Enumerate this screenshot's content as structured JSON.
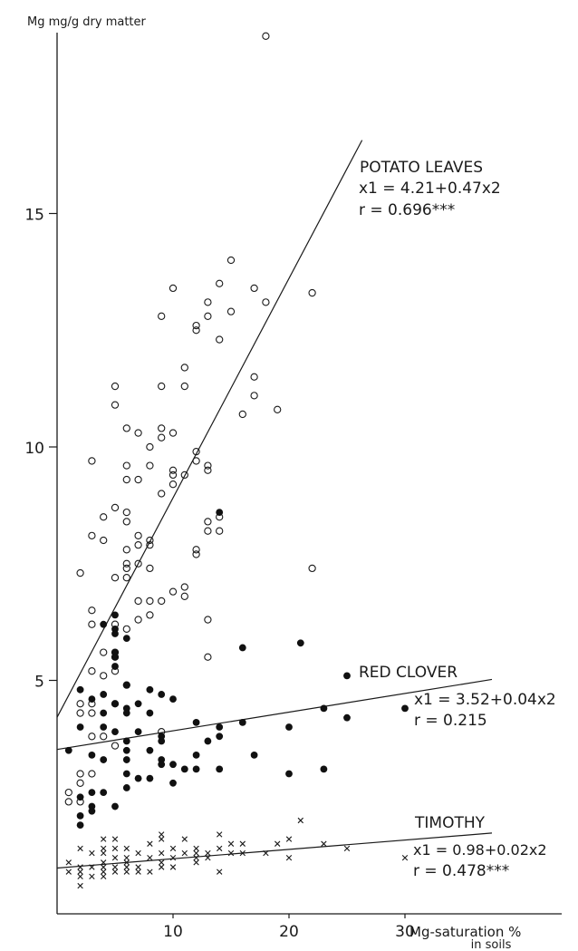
{
  "chart_data": {
    "type": "scatter",
    "title": "",
    "ylabel": "Mg mg/g dry matter",
    "xlabel_line1": "Mg-saturation %",
    "xlabel_line2": "in soils",
    "xlim": [
      0,
      44
    ],
    "ylim": [
      0,
      19
    ],
    "xticks": [
      10,
      20,
      30
    ],
    "xtick_labels": [
      "10",
      "20",
      "30"
    ],
    "yticks": [
      5,
      10,
      15
    ],
    "ytick_labels": [
      "5",
      "10",
      "15"
    ],
    "grid": false,
    "series": [
      {
        "name": "POTATO LEAVES",
        "equation": "x1 = 4.21+0.47x2",
        "r_label": "r = 0.696***",
        "marker": "open-circle",
        "fit": {
          "intercept": 4.21,
          "slope": 0.47,
          "x_end": 26.3
        },
        "points": [
          [
            18,
            18.8
          ],
          [
            15,
            14
          ],
          [
            14,
            13.5
          ],
          [
            10,
            13.4
          ],
          [
            17,
            13.4
          ],
          [
            22,
            13.3
          ],
          [
            13,
            13.1
          ],
          [
            18,
            13.1
          ],
          [
            15,
            12.9
          ],
          [
            9,
            12.8
          ],
          [
            13,
            12.8
          ],
          [
            12,
            12.6
          ],
          [
            12,
            12.5
          ],
          [
            14,
            12.3
          ],
          [
            11,
            11.7
          ],
          [
            17,
            11.5
          ],
          [
            5,
            11.3
          ],
          [
            9,
            11.3
          ],
          [
            11,
            11.3
          ],
          [
            17,
            11.1
          ],
          [
            5,
            10.9
          ],
          [
            19,
            10.8
          ],
          [
            16,
            10.7
          ],
          [
            6,
            10.4
          ],
          [
            9,
            10.4
          ],
          [
            7,
            10.3
          ],
          [
            10,
            10.3
          ],
          [
            9,
            10.2
          ],
          [
            8,
            10
          ],
          [
            12,
            9.9
          ],
          [
            12,
            9.7
          ],
          [
            3,
            9.7
          ],
          [
            6,
            9.6
          ],
          [
            8,
            9.6
          ],
          [
            13,
            9.6
          ],
          [
            10,
            9.5
          ],
          [
            13,
            9.5
          ],
          [
            10,
            9.4
          ],
          [
            11,
            9.4
          ],
          [
            6,
            9.3
          ],
          [
            7,
            9.3
          ],
          [
            10,
            9.2
          ],
          [
            9,
            9
          ],
          [
            5,
            8.7
          ],
          [
            6,
            8.6
          ],
          [
            14,
            8.5
          ],
          [
            4,
            8.5
          ],
          [
            6,
            8.4
          ],
          [
            13,
            8.4
          ],
          [
            13,
            8.2
          ],
          [
            14,
            8.2
          ],
          [
            3,
            8.1
          ],
          [
            7,
            8.1
          ],
          [
            4,
            8
          ],
          [
            8,
            8
          ],
          [
            7,
            7.9
          ],
          [
            8,
            7.9
          ],
          [
            6,
            7.8
          ],
          [
            12,
            7.8
          ],
          [
            12,
            7.7
          ],
          [
            6,
            7.5
          ],
          [
            7,
            7.5
          ],
          [
            6,
            7.4
          ],
          [
            8,
            7.4
          ],
          [
            22,
            7.4
          ],
          [
            2,
            7.3
          ],
          [
            5,
            7.2
          ],
          [
            6,
            7.2
          ],
          [
            11,
            7
          ],
          [
            10,
            6.9
          ],
          [
            11,
            6.8
          ],
          [
            7,
            6.7
          ],
          [
            8,
            6.7
          ],
          [
            9,
            6.7
          ],
          [
            3,
            6.5
          ],
          [
            8,
            6.4
          ],
          [
            7,
            6.3
          ],
          [
            13,
            6.3
          ],
          [
            3,
            6.2
          ],
          [
            5,
            6.2
          ],
          [
            6,
            6.1
          ],
          [
            4,
            5.6
          ],
          [
            5,
            5.6
          ],
          [
            5,
            5.5
          ],
          [
            13,
            5.5
          ],
          [
            3,
            5.2
          ],
          [
            5,
            5.2
          ],
          [
            4,
            5.1
          ],
          [
            6,
            4.9
          ],
          [
            2,
            4.5
          ],
          [
            3,
            4.5
          ],
          [
            5,
            4.5
          ],
          [
            2,
            4.3
          ],
          [
            3,
            4.3
          ],
          [
            9,
            3.9
          ],
          [
            3,
            3.8
          ],
          [
            4,
            3.8
          ],
          [
            5,
            3.6
          ],
          [
            2,
            3
          ],
          [
            3,
            3
          ],
          [
            2,
            2.8
          ],
          [
            1,
            2.6
          ],
          [
            1,
            2.4
          ],
          [
            2,
            2.4
          ]
        ]
      },
      {
        "name": "RED CLOVER",
        "equation": "x1 = 3.52+0.04x2",
        "r_label": "r = 0.215",
        "marker": "filled-circle",
        "fit": {
          "intercept": 3.52,
          "slope": 0.04,
          "x_end": 37.5
        },
        "points": [
          [
            14,
            8.6
          ],
          [
            5,
            6.4
          ],
          [
            4,
            6.2
          ],
          [
            5,
            6.1
          ],
          [
            5,
            6
          ],
          [
            6,
            5.9
          ],
          [
            21,
            5.8
          ],
          [
            16,
            5.7
          ],
          [
            5,
            5.6
          ],
          [
            5,
            5.5
          ],
          [
            5,
            5.3
          ],
          [
            25,
            5.1
          ],
          [
            6,
            4.9
          ],
          [
            2,
            4.8
          ],
          [
            8,
            4.8
          ],
          [
            4,
            4.7
          ],
          [
            9,
            4.7
          ],
          [
            3,
            4.6
          ],
          [
            10,
            4.6
          ],
          [
            5,
            4.5
          ],
          [
            7,
            4.5
          ],
          [
            6,
            4.4
          ],
          [
            23,
            4.4
          ],
          [
            30,
            4.4
          ],
          [
            4,
            4.3
          ],
          [
            6,
            4.3
          ],
          [
            8,
            4.3
          ],
          [
            25,
            4.2
          ],
          [
            12,
            4.1
          ],
          [
            16,
            4.1
          ],
          [
            2,
            4
          ],
          [
            4,
            4
          ],
          [
            14,
            4
          ],
          [
            20,
            4
          ],
          [
            5,
            3.9
          ],
          [
            7,
            3.9
          ],
          [
            9,
            3.8
          ],
          [
            14,
            3.8
          ],
          [
            6,
            3.7
          ],
          [
            9,
            3.7
          ],
          [
            13,
            3.7
          ],
          [
            1,
            3.5
          ],
          [
            6,
            3.5
          ],
          [
            8,
            3.5
          ],
          [
            3,
            3.4
          ],
          [
            12,
            3.4
          ],
          [
            17,
            3.4
          ],
          [
            4,
            3.3
          ],
          [
            6,
            3.3
          ],
          [
            9,
            3.3
          ],
          [
            9,
            3.2
          ],
          [
            10,
            3.2
          ],
          [
            11,
            3.1
          ],
          [
            12,
            3.1
          ],
          [
            14,
            3.1
          ],
          [
            23,
            3.1
          ],
          [
            6,
            3
          ],
          [
            20,
            3
          ],
          [
            7,
            2.9
          ],
          [
            8,
            2.9
          ],
          [
            10,
            2.8
          ],
          [
            6,
            2.7
          ],
          [
            3,
            2.6
          ],
          [
            4,
            2.6
          ],
          [
            2,
            2.5
          ],
          [
            3,
            2.3
          ],
          [
            5,
            2.3
          ],
          [
            3,
            2.2
          ],
          [
            2,
            2.1
          ],
          [
            2,
            1.9
          ]
        ]
      },
      {
        "name": "TIMOTHY",
        "equation": "x1 = 0.98+0.02x2",
        "r_label": "r = 0.478***",
        "marker": "cross",
        "fit": {
          "intercept": 0.98,
          "slope": 0.02,
          "x_end": 37.5
        },
        "points": [
          [
            1,
            1.1
          ],
          [
            1,
            0.9
          ],
          [
            2,
            1.4
          ],
          [
            2,
            1
          ],
          [
            2,
            0.9
          ],
          [
            2,
            0.8
          ],
          [
            2,
            0.6
          ],
          [
            3,
            1.3
          ],
          [
            3,
            1
          ],
          [
            3,
            0.8
          ],
          [
            4,
            1.6
          ],
          [
            4,
            1.4
          ],
          [
            4,
            1.3
          ],
          [
            4,
            1.1
          ],
          [
            4,
            1
          ],
          [
            4,
            0.9
          ],
          [
            4,
            0.8
          ],
          [
            5,
            1.6
          ],
          [
            5,
            1.4
          ],
          [
            5,
            1.2
          ],
          [
            5,
            1
          ],
          [
            5,
            0.9
          ],
          [
            6,
            1.4
          ],
          [
            6,
            1.2
          ],
          [
            6,
            1.1
          ],
          [
            6,
            1
          ],
          [
            6,
            0.9
          ],
          [
            7,
            1.3
          ],
          [
            7,
            1
          ],
          [
            7,
            0.9
          ],
          [
            8,
            1.5
          ],
          [
            8,
            1.2
          ],
          [
            8,
            0.9
          ],
          [
            9,
            1.7
          ],
          [
            9,
            1.6
          ],
          [
            9,
            1.3
          ],
          [
            9,
            1.1
          ],
          [
            9,
            1
          ],
          [
            10,
            1.4
          ],
          [
            10,
            1.2
          ],
          [
            10,
            1
          ],
          [
            11,
            1.6
          ],
          [
            11,
            1.3
          ],
          [
            12,
            1.4
          ],
          [
            12,
            1.3
          ],
          [
            12,
            1.2
          ],
          [
            12,
            1.1
          ],
          [
            13,
            1.3
          ],
          [
            13,
            1.2
          ],
          [
            14,
            1.7
          ],
          [
            14,
            1.4
          ],
          [
            14,
            0.9
          ],
          [
            15,
            1.5
          ],
          [
            15,
            1.3
          ],
          [
            16,
            1.5
          ],
          [
            16,
            1.3
          ],
          [
            18,
            1.3
          ],
          [
            19,
            1.5
          ],
          [
            20,
            1.6
          ],
          [
            20,
            1.2
          ],
          [
            21,
            2
          ],
          [
            23,
            1.5
          ],
          [
            25,
            1.4
          ],
          [
            30,
            1.2
          ]
        ]
      }
    ]
  }
}
